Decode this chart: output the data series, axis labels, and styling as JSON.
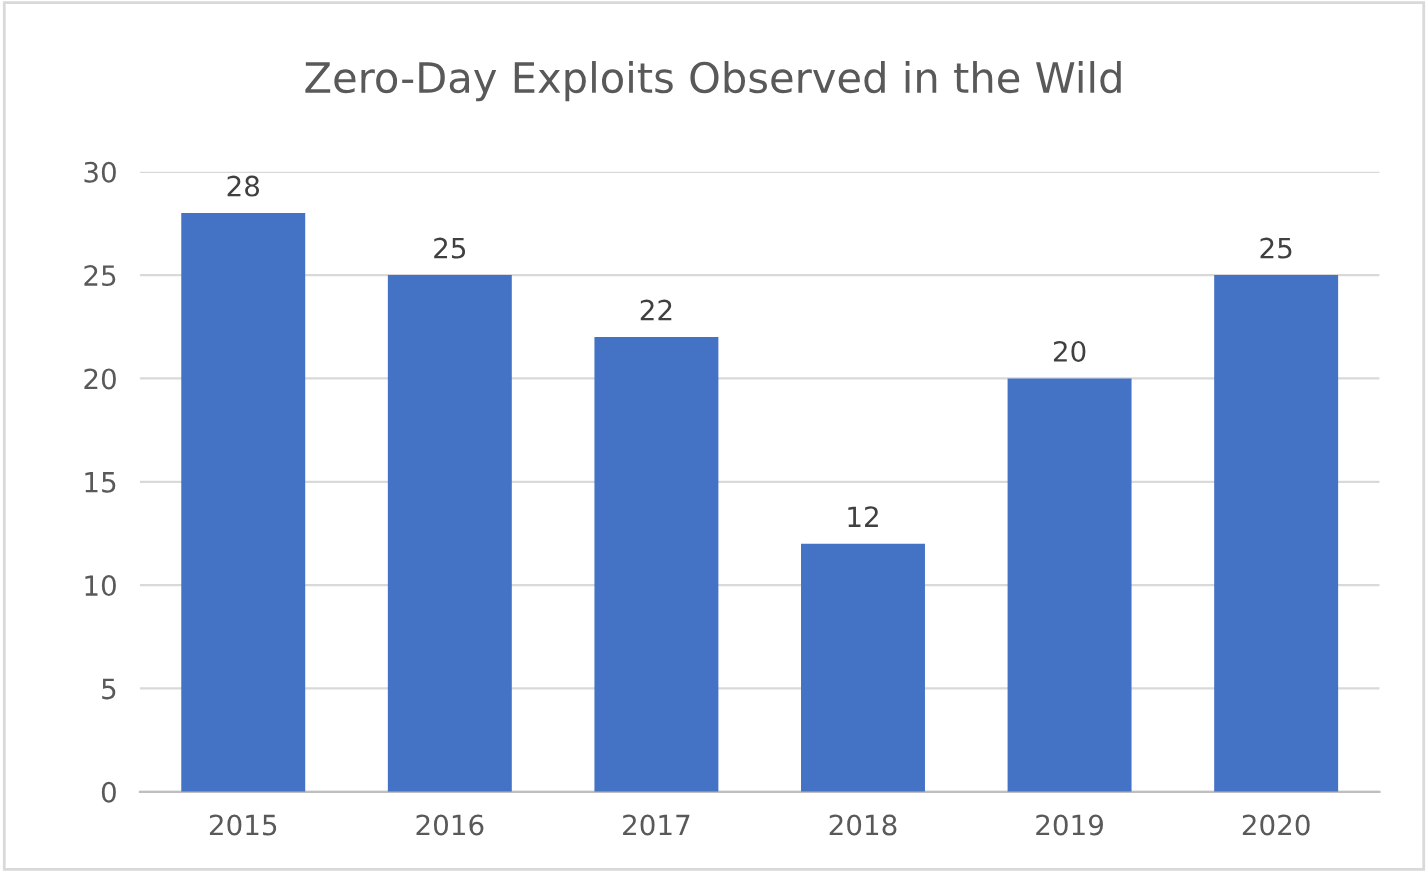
{
  "chart_data": {
    "type": "bar",
    "title": "Zero-Day Exploits Observed in the Wild",
    "categories": [
      "2015",
      "2016",
      "2017",
      "2018",
      "2019",
      "2020"
    ],
    "values": [
      28,
      25,
      22,
      12,
      20,
      25
    ],
    "color": "#4472c4",
    "ylim": [
      0,
      30
    ],
    "yticks": [
      0,
      5,
      10,
      15,
      20,
      25,
      30
    ],
    "grid": "y",
    "data_labels": true
  }
}
